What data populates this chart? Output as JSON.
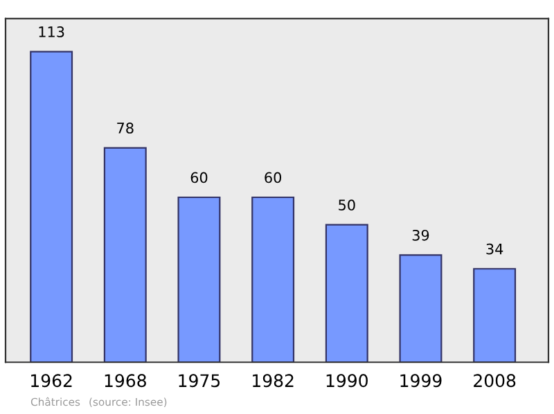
{
  "chart_data": {
    "type": "bar",
    "categories": [
      "1962",
      "1968",
      "1975",
      "1982",
      "1990",
      "1999",
      "2008"
    ],
    "values": [
      113,
      78,
      60,
      60,
      50,
      39,
      34
    ],
    "color": "#7799ff",
    "ylim": [
      0,
      125
    ],
    "data_labels": true,
    "grid": false,
    "legend": false,
    "tick_labels": "x",
    "annotations": [
      "Châtrices",
      "(source: Insee)"
    ]
  }
}
